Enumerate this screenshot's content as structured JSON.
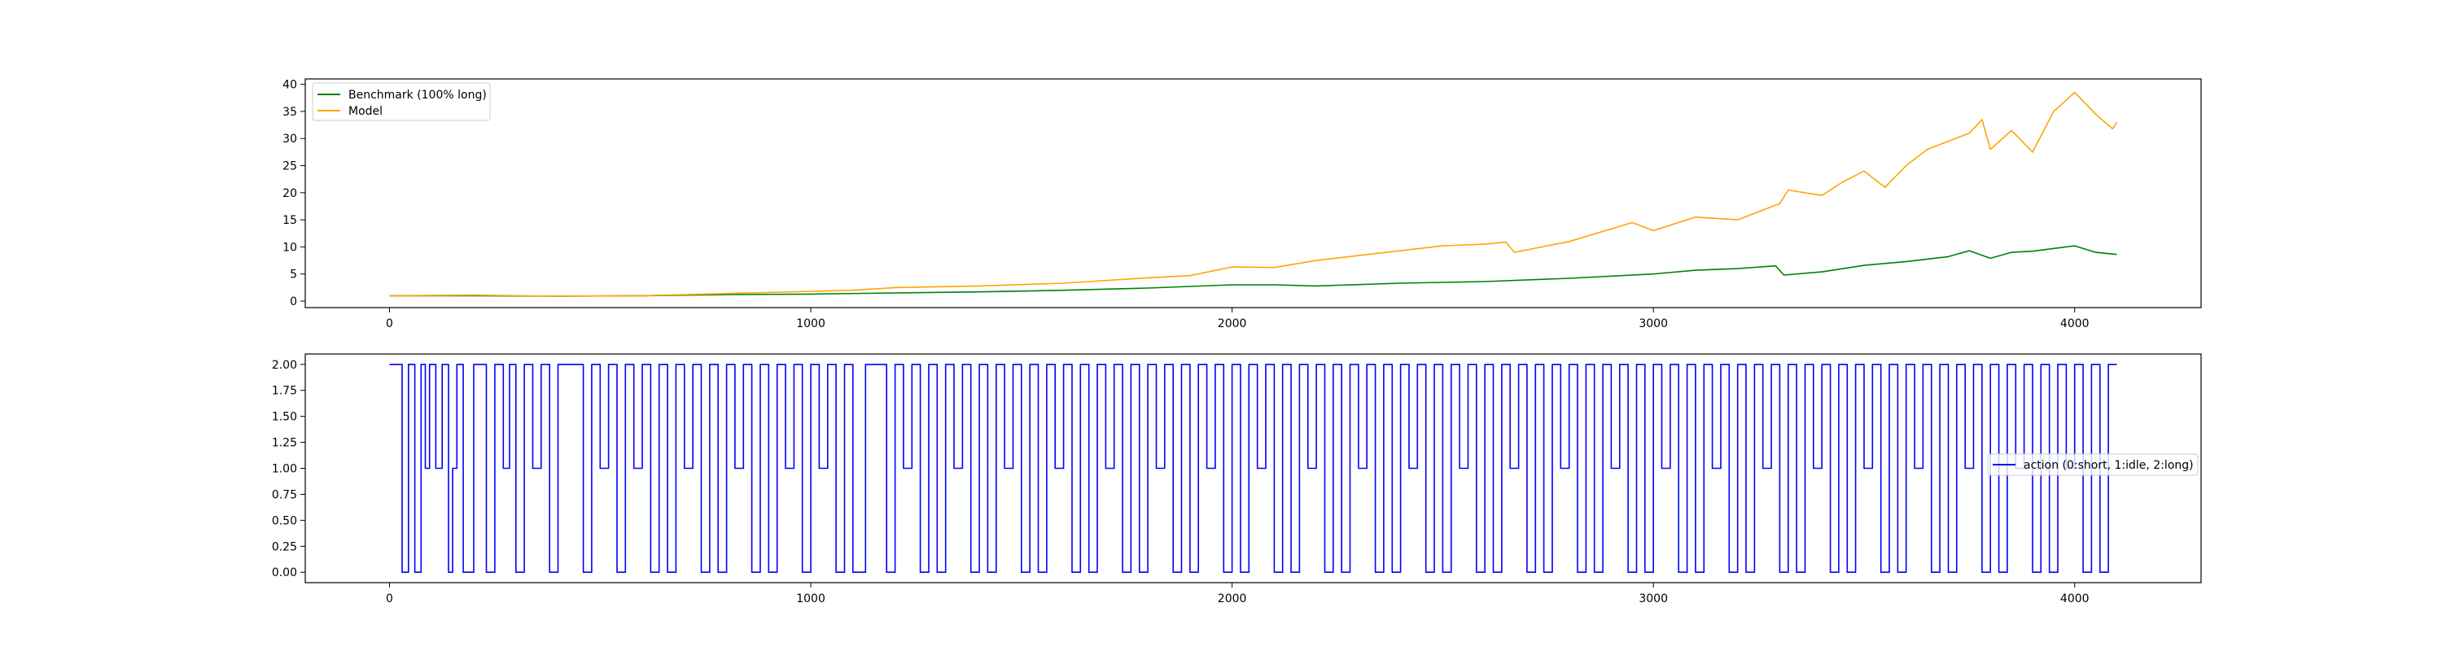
{
  "chart_data": [
    {
      "type": "line",
      "xlim": [
        -200,
        4300
      ],
      "ylim": [
        -1.2,
        41
      ],
      "x_ticks": [
        0,
        1000,
        2000,
        3000,
        4000
      ],
      "x_tick_labels": [
        "0",
        "1000",
        "2000",
        "3000",
        "4000"
      ],
      "y_ticks": [
        0,
        5,
        10,
        15,
        20,
        25,
        30,
        35,
        40
      ],
      "y_tick_labels": [
        "0",
        "5",
        "10",
        "15",
        "20",
        "25",
        "30",
        "35",
        "40"
      ],
      "grid": false,
      "legend_position": "upper-left",
      "series": [
        {
          "name": "Benchmark (100% long)",
          "color": "#008000",
          "x": [
            0,
            200,
            400,
            600,
            800,
            1000,
            1200,
            1400,
            1600,
            1800,
            2000,
            2100,
            2200,
            2400,
            2600,
            2800,
            3000,
            3100,
            3200,
            3290,
            3310,
            3400,
            3500,
            3600,
            3700,
            3750,
            3800,
            3850,
            3900,
            4000,
            4050,
            4100
          ],
          "y": [
            1.0,
            1.0,
            0.9,
            1.0,
            1.2,
            1.3,
            1.5,
            1.7,
            2.0,
            2.4,
            3.0,
            3.0,
            2.8,
            3.3,
            3.6,
            4.2,
            5.0,
            5.7,
            6.0,
            6.5,
            4.8,
            5.4,
            6.6,
            7.3,
            8.2,
            9.3,
            7.9,
            9.0,
            9.2,
            10.2,
            9.0,
            8.6
          ]
        },
        {
          "name": "Model",
          "color": "#ffa500",
          "x": [
            0,
            200,
            400,
            600,
            800,
            1000,
            1100,
            1200,
            1400,
            1600,
            1800,
            1900,
            2000,
            2100,
            2200,
            2300,
            2400,
            2500,
            2600,
            2650,
            2670,
            2800,
            2950,
            3000,
            3100,
            3200,
            3250,
            3300,
            3320,
            3400,
            3450,
            3500,
            3550,
            3600,
            3650,
            3700,
            3750,
            3780,
            3800,
            3850,
            3900,
            3950,
            4000,
            4050,
            4090,
            4100
          ],
          "y": [
            1.0,
            1.1,
            0.9,
            1.0,
            1.4,
            1.8,
            2.0,
            2.5,
            2.8,
            3.3,
            4.3,
            4.7,
            6.3,
            6.2,
            7.5,
            8.4,
            9.3,
            10.2,
            10.5,
            10.9,
            9.0,
            11.0,
            14.5,
            13.0,
            15.5,
            15.0,
            16.5,
            18.0,
            20.5,
            19.5,
            22.0,
            24.0,
            21.0,
            25.0,
            28.0,
            29.5,
            31.0,
            33.5,
            28.0,
            31.5,
            27.5,
            35.0,
            38.5,
            34.5,
            31.8,
            33.0
          ]
        }
      ]
    },
    {
      "type": "line",
      "step": true,
      "xlim": [
        -200,
        4300
      ],
      "ylim": [
        -0.1,
        2.1
      ],
      "x_ticks": [
        0,
        1000,
        2000,
        3000,
        4000
      ],
      "x_tick_labels": [
        "0",
        "1000",
        "2000",
        "3000",
        "4000"
      ],
      "y_ticks": [
        0,
        0.25,
        0.5,
        0.75,
        1.0,
        1.25,
        1.5,
        1.75,
        2.0
      ],
      "y_tick_labels": [
        "0.00",
        "0.25",
        "0.50",
        "0.75",
        "1.00",
        "1.25",
        "1.50",
        "1.75",
        "2.00"
      ],
      "grid": false,
      "legend_position": "center-right",
      "series": [
        {
          "name": "action (0:short, 1:idle, 2:long)",
          "color": "#0000ff",
          "x": [
            0,
            30,
            45,
            60,
            75,
            85,
            95,
            110,
            125,
            140,
            150,
            160,
            175,
            200,
            230,
            250,
            270,
            285,
            300,
            320,
            340,
            360,
            380,
            400,
            430,
            460,
            480,
            500,
            520,
            540,
            560,
            580,
            600,
            620,
            640,
            660,
            680,
            700,
            720,
            740,
            760,
            780,
            800,
            820,
            840,
            860,
            880,
            900,
            920,
            940,
            960,
            980,
            1000,
            1020,
            1040,
            1060,
            1080,
            1100,
            1130,
            1160,
            1180,
            1200,
            1220,
            1240,
            1260,
            1280,
            1300,
            1320,
            1340,
            1360,
            1380,
            1400,
            1420,
            1440,
            1460,
            1480,
            1500,
            1520,
            1540,
            1560,
            1580,
            1600,
            1620,
            1640,
            1660,
            1680,
            1700,
            1720,
            1740,
            1760,
            1780,
            1800,
            1820,
            1840,
            1860,
            1880,
            1900,
            1920,
            1940,
            1960,
            1980,
            2000,
            2020,
            2040,
            2060,
            2080,
            2100,
            2120,
            2140,
            2160,
            2180,
            2200,
            2220,
            2240,
            2260,
            2280,
            2300,
            2320,
            2340,
            2360,
            2380,
            2400,
            2420,
            2440,
            2460,
            2480,
            2500,
            2520,
            2540,
            2560,
            2580,
            2600,
            2620,
            2640,
            2660,
            2680,
            2700,
            2720,
            2740,
            2760,
            2780,
            2800,
            2820,
            2840,
            2860,
            2880,
            2900,
            2920,
            2940,
            2960,
            2980,
            3000,
            3020,
            3040,
            3060,
            3080,
            3100,
            3120,
            3140,
            3160,
            3180,
            3200,
            3220,
            3240,
            3260,
            3280,
            3300,
            3320,
            3340,
            3360,
            3380,
            3400,
            3420,
            3440,
            3460,
            3480,
            3500,
            3520,
            3540,
            3560,
            3580,
            3600,
            3620,
            3640,
            3660,
            3680,
            3700,
            3720,
            3740,
            3760,
            3780,
            3800,
            3820,
            3840,
            3860,
            3880,
            3900,
            3920,
            3940,
            3960,
            3980,
            4000,
            4020,
            4040,
            4060,
            4080,
            4100
          ],
          "y": [
            2,
            0,
            2,
            0,
            2,
            1,
            2,
            1,
            2,
            0,
            1,
            2,
            0,
            2,
            0,
            2,
            1,
            2,
            0,
            2,
            1,
            2,
            0,
            2,
            2,
            0,
            2,
            1,
            2,
            0,
            2,
            1,
            2,
            0,
            2,
            0,
            2,
            1,
            2,
            0,
            2,
            0,
            2,
            1,
            2,
            0,
            2,
            0,
            2,
            1,
            2,
            0,
            2,
            1,
            2,
            0,
            2,
            0,
            2,
            2,
            0,
            2,
            1,
            2,
            0,
            2,
            0,
            2,
            1,
            2,
            0,
            2,
            0,
            2,
            1,
            2,
            0,
            2,
            0,
            2,
            1,
            2,
            0,
            2,
            0,
            2,
            1,
            2,
            0,
            2,
            0,
            2,
            1,
            2,
            0,
            2,
            0,
            2,
            1,
            2,
            0,
            2,
            0,
            2,
            1,
            2,
            0,
            2,
            0,
            2,
            1,
            2,
            0,
            2,
            0,
            2,
            1,
            2,
            0,
            2,
            0,
            2,
            1,
            2,
            0,
            2,
            0,
            2,
            1,
            2,
            0,
            2,
            0,
            2,
            1,
            2,
            0,
            2,
            0,
            2,
            1,
            2,
            0,
            2,
            0,
            2,
            1,
            2,
            0,
            2,
            0,
            2,
            1,
            2,
            0,
            2,
            0,
            2,
            1,
            2,
            0,
            2,
            0,
            2,
            1,
            2,
            0,
            2,
            0,
            2,
            1,
            2,
            0,
            2,
            0,
            2,
            1,
            2,
            0,
            2,
            0,
            2,
            1,
            2,
            0,
            2,
            0,
            2,
            1,
            2,
            0,
            2,
            0,
            2,
            1,
            2,
            0,
            2,
            0,
            2,
            1,
            2,
            0,
            2,
            0,
            2,
            2
          ]
        }
      ]
    }
  ]
}
